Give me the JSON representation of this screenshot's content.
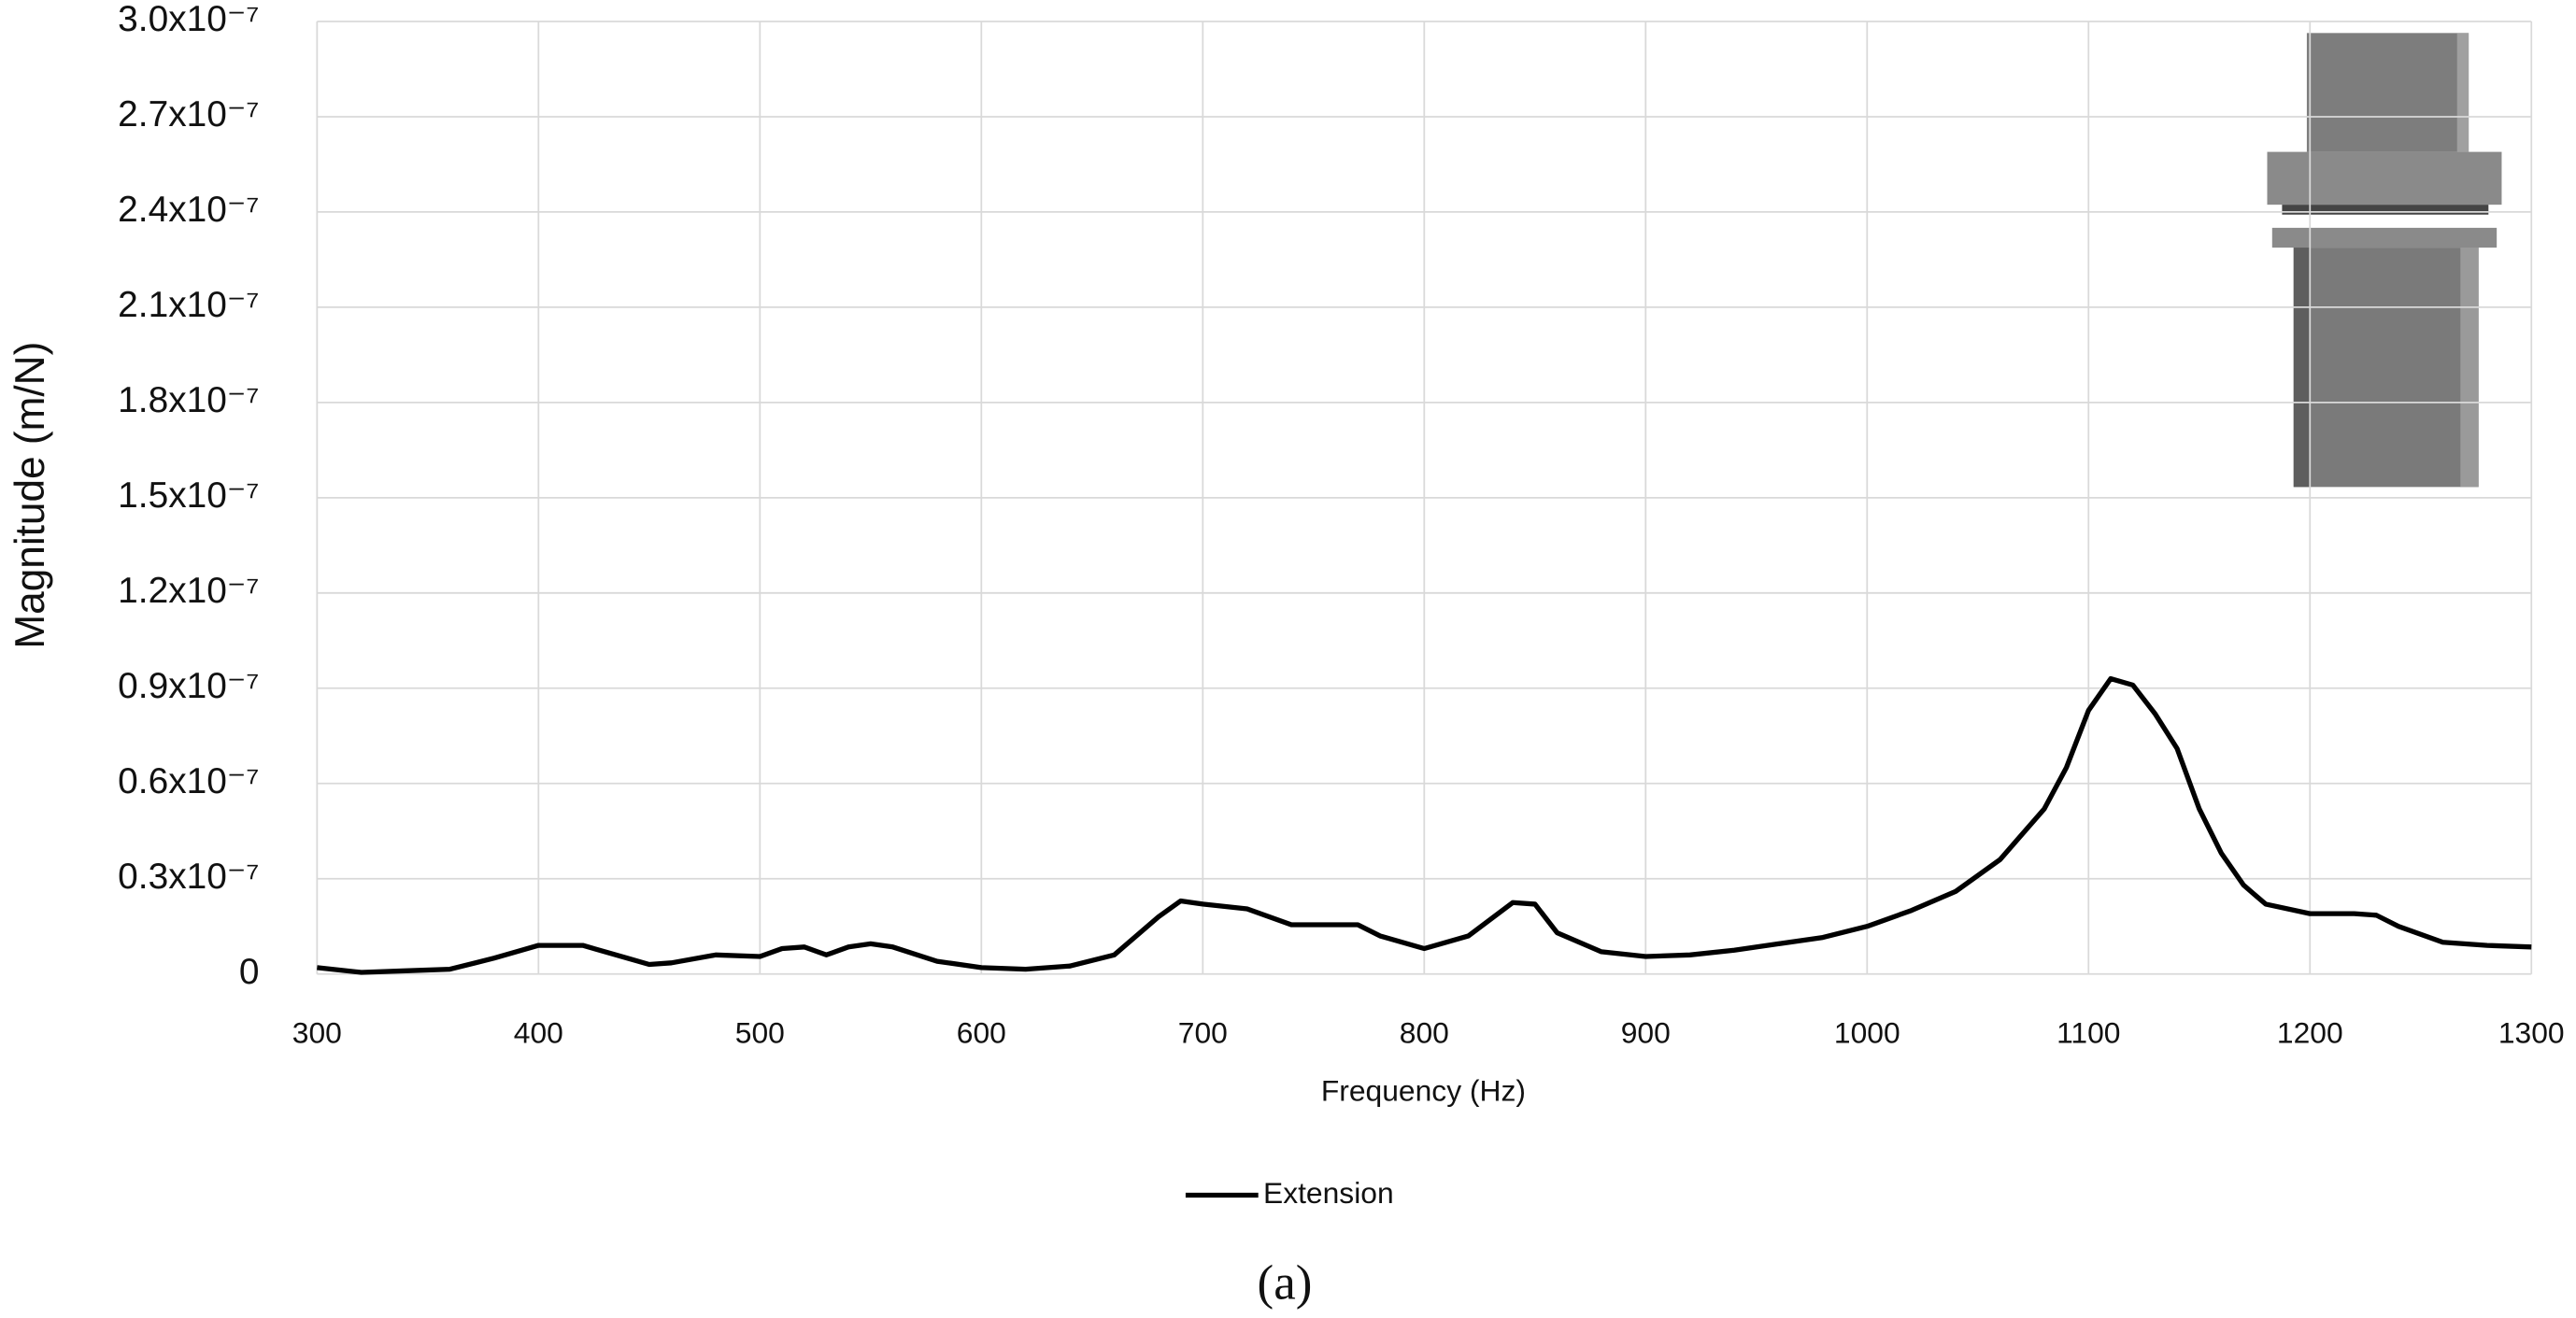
{
  "chart_data": {
    "type": "line",
    "x_label": "Frequency (Hz)",
    "y_label": "Magnitude (m/N)",
    "caption": "(a)",
    "xlim": [
      300,
      1300
    ],
    "xticks": [
      300,
      400,
      500,
      600,
      700,
      800,
      900,
      1000,
      1100,
      1200,
      1300
    ],
    "ylim": [
      0,
      3e-07
    ],
    "yticks": [
      0,
      {
        "value": 3e-08,
        "label": "0.3x10⁻⁷"
      },
      {
        "value": 6e-08,
        "label": "0.6x10⁻⁷"
      },
      {
        "value": 9e-08,
        "label": "0.9x10⁻⁷"
      },
      {
        "value": 1.2e-07,
        "label": "1.2x10⁻⁷"
      },
      {
        "value": 1.5e-07,
        "label": "1.5x10⁻⁷"
      },
      {
        "value": 1.8e-07,
        "label": "1.8x10⁻⁷"
      },
      {
        "value": 2.1e-07,
        "label": "2.1x10⁻⁷"
      },
      {
        "value": 2.4e-07,
        "label": "2.4x10⁻⁷"
      },
      {
        "value": 2.7e-07,
        "label": "2.7x10⁻⁷"
      },
      {
        "value": 3e-07,
        "label": "3.0x10⁻⁷"
      }
    ],
    "grid": true,
    "legend": "bottom",
    "x": [
      300,
      320,
      340,
      360,
      380,
      400,
      420,
      440,
      450,
      460,
      480,
      500,
      510,
      520,
      530,
      540,
      550,
      560,
      580,
      600,
      620,
      640,
      660,
      680,
      690,
      700,
      720,
      740,
      760,
      770,
      780,
      800,
      820,
      840,
      850,
      860,
      880,
      900,
      920,
      940,
      960,
      980,
      1000,
      1020,
      1040,
      1060,
      1080,
      1090,
      1100,
      1110,
      1120,
      1130,
      1140,
      1150,
      1160,
      1170,
      1180,
      1200,
      1220,
      1230,
      1240,
      1260,
      1280,
      1300
    ],
    "series": [
      {
        "name": "Extension",
        "color": "#000000",
        "values": [
          2e-09,
          5e-10,
          1e-09,
          1.5e-09,
          5e-09,
          9e-09,
          9e-09,
          5e-09,
          3e-09,
          3.5e-09,
          6e-09,
          5.5e-09,
          8e-09,
          8.5e-09,
          6e-09,
          8.5e-09,
          9.5e-09,
          8.5e-09,
          4e-09,
          2e-09,
          1.5e-09,
          2.5e-09,
          6e-09,
          1.8e-08,
          2.3e-08,
          2.2e-08,
          2.05e-08,
          1.55e-08,
          1.55e-08,
          1.55e-08,
          1.2e-08,
          8e-09,
          1.2e-08,
          2.25e-08,
          2.2e-08,
          1.3e-08,
          7e-09,
          5.5e-09,
          6e-09,
          7.5e-09,
          9.5e-09,
          1.15e-08,
          1.5e-08,
          2e-08,
          2.6e-08,
          3.6e-08,
          5.2e-08,
          6.5e-08,
          8.3e-08,
          9.3e-08,
          9.1e-08,
          8.2e-08,
          7.1e-08,
          5.2e-08,
          3.8e-08,
          2.8e-08,
          2.2e-08,
          1.9e-08,
          1.9e-08,
          1.85e-08,
          1.5e-08,
          1e-08,
          9e-09,
          8.5e-09
        ]
      }
    ]
  }
}
